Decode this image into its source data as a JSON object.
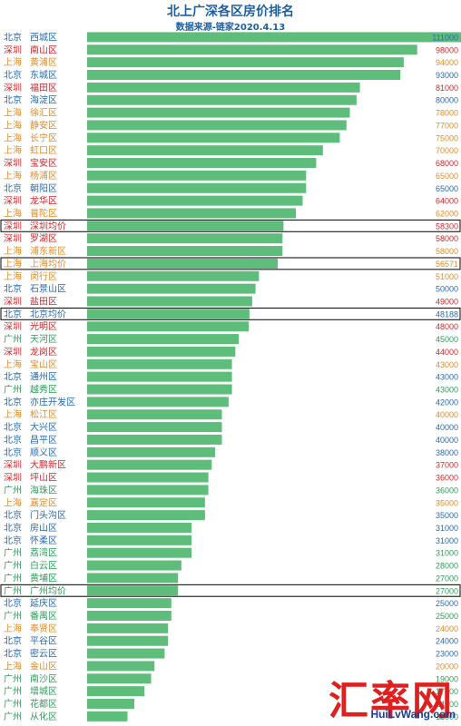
{
  "header": {
    "title": "北上广深各区房价排名",
    "subtitle": "数据来源-链家2020.4.13"
  },
  "watermark": {
    "cn": "汇率网",
    "en": "HuiLvWang.com"
  },
  "colors": {
    "bar": "#5ebd7a",
    "北京": "#2a6ab0",
    "深圳": "#d0282c",
    "上海": "#e38c2b",
    "广州": "#2f9d5c",
    "highlight_border": "#000000"
  },
  "chart_data": {
    "type": "bar",
    "orientation": "horizontal",
    "title": "北上广深各区房价排名",
    "subtitle": "数据来源-链家2020.4.13",
    "xlim": [
      0,
      111000
    ],
    "rows": [
      {
        "city": "北京",
        "district": "西城区",
        "value": 111000,
        "label": "111000"
      },
      {
        "city": "深圳",
        "district": "南山区",
        "value": 98000,
        "label": "98000"
      },
      {
        "city": "上海",
        "district": "黄浦区",
        "value": 94000,
        "label": "94000"
      },
      {
        "city": "北京",
        "district": "东城区",
        "value": 93000,
        "label": "93000"
      },
      {
        "city": "深圳",
        "district": "福田区",
        "value": 81000,
        "label": "81000"
      },
      {
        "city": "北京",
        "district": "海淀区",
        "value": 80000,
        "label": "80000"
      },
      {
        "city": "上海",
        "district": "徐汇区",
        "value": 78000,
        "label": "78000"
      },
      {
        "city": "上海",
        "district": "静安区",
        "value": 77000,
        "label": "77000"
      },
      {
        "city": "上海",
        "district": "长宁区",
        "value": 75000,
        "label": "75000"
      },
      {
        "city": "上海",
        "district": "虹口区",
        "value": 70000,
        "label": "70000"
      },
      {
        "city": "深圳",
        "district": "宝安区",
        "value": 68000,
        "label": "68000"
      },
      {
        "city": "上海",
        "district": "杨浦区",
        "value": 65000,
        "label": "65000"
      },
      {
        "city": "北京",
        "district": "朝阳区",
        "value": 65000,
        "label": "65000"
      },
      {
        "city": "深圳",
        "district": "龙华区",
        "value": 64000,
        "label": "64000"
      },
      {
        "city": "上海",
        "district": "普陀区",
        "value": 62000,
        "label": "62000"
      },
      {
        "city": "深圳",
        "district": "深圳均价",
        "value": 58300,
        "label": "58300",
        "highlight": true
      },
      {
        "city": "深圳",
        "district": "罗湖区",
        "value": 58000,
        "label": "58000"
      },
      {
        "city": "上海",
        "district": "浦东新区",
        "value": 58000,
        "label": "58000"
      },
      {
        "city": "上海",
        "district": "上海均价",
        "value": 56571,
        "label": "56571",
        "highlight": true
      },
      {
        "city": "上海",
        "district": "闵行区",
        "value": 51000,
        "label": "51000"
      },
      {
        "city": "北京",
        "district": "石景山区",
        "value": 50000,
        "label": "50000"
      },
      {
        "city": "深圳",
        "district": "盐田区",
        "value": 49000,
        "label": "49000"
      },
      {
        "city": "北京",
        "district": "北京均价",
        "value": 48188,
        "label": "48188",
        "highlight": true
      },
      {
        "city": "深圳",
        "district": "光明区",
        "value": 48000,
        "label": "48000"
      },
      {
        "city": "广州",
        "district": "天河区",
        "value": 45000,
        "label": "45000"
      },
      {
        "city": "深圳",
        "district": "龙岗区",
        "value": 44000,
        "label": "44000"
      },
      {
        "city": "上海",
        "district": "宝山区",
        "value": 43000,
        "label": "43000"
      },
      {
        "city": "北京",
        "district": "通州区",
        "value": 43000,
        "label": "43000"
      },
      {
        "city": "广州",
        "district": "越秀区",
        "value": 43000,
        "label": "43000"
      },
      {
        "city": "北京",
        "district": "亦庄开发区",
        "value": 42000,
        "label": "42000"
      },
      {
        "city": "上海",
        "district": "松江区",
        "value": 40000,
        "label": "40000"
      },
      {
        "city": "北京",
        "district": "大兴区",
        "value": 40000,
        "label": "40000"
      },
      {
        "city": "北京",
        "district": "昌平区",
        "value": 40000,
        "label": "40000"
      },
      {
        "city": "北京",
        "district": "顺义区",
        "value": 38000,
        "label": "38000"
      },
      {
        "city": "深圳",
        "district": "大鹏新区",
        "value": 37000,
        "label": "37000"
      },
      {
        "city": "深圳",
        "district": "坪山区",
        "value": 36000,
        "label": "36000"
      },
      {
        "city": "广州",
        "district": "海珠区",
        "value": 36000,
        "label": "36000"
      },
      {
        "city": "上海",
        "district": "嘉定区",
        "value": 35000,
        "label": "35000"
      },
      {
        "city": "北京",
        "district": "门头沟区",
        "value": 35000,
        "label": "35000"
      },
      {
        "city": "北京",
        "district": "房山区",
        "value": 31000,
        "label": "31000"
      },
      {
        "city": "北京",
        "district": "怀柔区",
        "value": 31000,
        "label": "31000"
      },
      {
        "city": "广州",
        "district": "荔湾区",
        "value": 31000,
        "label": "31000"
      },
      {
        "city": "广州",
        "district": "白云区",
        "value": 28000,
        "label": "28000"
      },
      {
        "city": "广州",
        "district": "黄埔区",
        "value": 27000,
        "label": "27000"
      },
      {
        "city": "广州",
        "district": "广州均价",
        "value": 27000,
        "label": "27000",
        "highlight": true
      },
      {
        "city": "北京",
        "district": "延庆区",
        "value": 25000,
        "label": "25000"
      },
      {
        "city": "广州",
        "district": "番禺区",
        "value": 25000,
        "label": "25000"
      },
      {
        "city": "上海",
        "district": "奉贤区",
        "value": 24000,
        "label": "24000"
      },
      {
        "city": "北京",
        "district": "平谷区",
        "value": 24000,
        "label": "24000"
      },
      {
        "city": "北京",
        "district": "密云区",
        "value": 23000,
        "label": "23000"
      },
      {
        "city": "上海",
        "district": "金山区",
        "value": 20000,
        "label": "20000"
      },
      {
        "city": "广州",
        "district": "南沙区",
        "value": 19000,
        "label": "19000"
      },
      {
        "city": "广州",
        "district": "增城区",
        "value": 17000,
        "label": "17000"
      },
      {
        "city": "广州",
        "district": "花都区",
        "value": 14000,
        "label": "14000"
      },
      {
        "city": "广州",
        "district": "从化区",
        "value": 12000,
        "label": "12000"
      }
    ]
  }
}
